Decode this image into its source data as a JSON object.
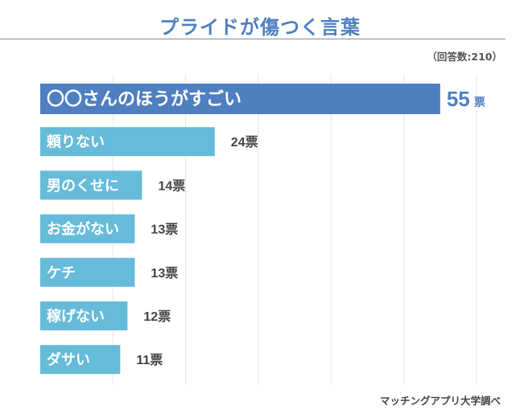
{
  "title": "プライドが傷つく言葉",
  "note": "（回答数:210）",
  "source": "マッチングアプリ大学調べ",
  "colors": {
    "title": "#4f7fc0",
    "top_bar": "#4f7fc0",
    "bar": "#66bbd9",
    "top_value": "#4f7fc0",
    "value": "#444444",
    "grid": "#e6e6e6"
  },
  "chart_data": {
    "type": "bar",
    "orientation": "horizontal",
    "categories": [
      "〇〇さんのほうがすごい",
      "頼りない",
      "男のくせに",
      "お金がない",
      "ケチ",
      "稼げない",
      "ダサい"
    ],
    "values": [
      55,
      24,
      14,
      13,
      13,
      12,
      11
    ],
    "value_labels": [
      "55",
      "24票",
      "14票",
      "13票",
      "13票",
      "12票",
      "11票"
    ],
    "top_unit": "票",
    "xlim": [
      0,
      60
    ],
    "grid": true
  }
}
